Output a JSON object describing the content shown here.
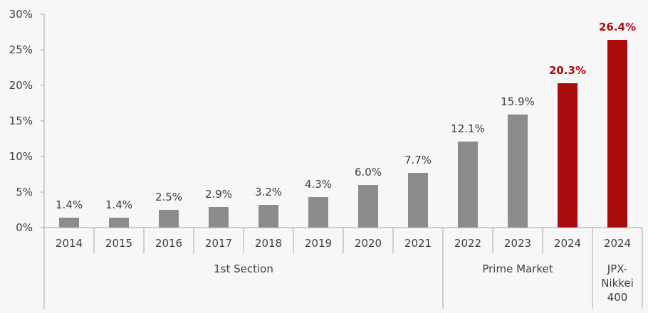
{
  "chart_data": {
    "type": "bar",
    "categories": [
      "2014",
      "2015",
      "2016",
      "2017",
      "2018",
      "2019",
      "2020",
      "2021",
      "2022",
      "2023",
      "2024",
      "2024"
    ],
    "values": [
      1.4,
      1.4,
      2.5,
      2.9,
      3.2,
      4.3,
      6.0,
      7.7,
      12.1,
      15.9,
      20.3,
      26.4
    ],
    "data_labels": [
      "1.4%",
      "1.4%",
      "2.5%",
      "2.9%",
      "3.2%",
      "4.3%",
      "6.0%",
      "7.7%",
      "12.1%",
      "15.9%",
      "20.3%",
      "26.4%"
    ],
    "highlighted": [
      false,
      false,
      false,
      false,
      false,
      false,
      false,
      false,
      false,
      false,
      true,
      true
    ],
    "y_ticks": [
      {
        "value": 0,
        "label": "0%"
      },
      {
        "value": 5,
        "label": "5%"
      },
      {
        "value": 10,
        "label": "10%"
      },
      {
        "value": 15,
        "label": "15%"
      },
      {
        "value": 20,
        "label": "20%"
      },
      {
        "value": 25,
        "label": "25%"
      },
      {
        "value": 30,
        "label": "30%"
      }
    ],
    "ylim": [
      0,
      30
    ],
    "groups": [
      {
        "lines": [
          "1st Section"
        ],
        "start": 0,
        "end": 7
      },
      {
        "lines": [
          "Prime Market"
        ],
        "start": 8,
        "end": 10
      },
      {
        "lines": [
          "JPX-",
          "Nikkei",
          "400"
        ],
        "start": 11,
        "end": 11
      }
    ],
    "colors": {
      "bar": "#8c8c8c",
      "highlight": "#a80c0c"
    },
    "grid": false,
    "title": "",
    "xlabel": "",
    "ylabel": ""
  }
}
